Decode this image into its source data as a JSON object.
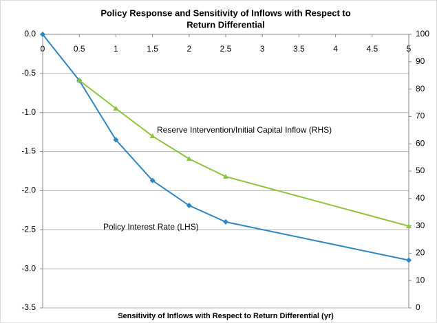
{
  "chart_data": {
    "type": "line",
    "title": [
      "Policy Response and Sensitivity of Inflows with Respect to",
      "Return Differential"
    ],
    "x_label": "Sensitivity of Inflows with Respect to Return Differential (γr)",
    "xlim": [
      0,
      5
    ],
    "xticks": [
      0,
      0.5,
      1,
      1.5,
      2,
      2.5,
      3,
      3.5,
      4,
      4.5,
      5
    ],
    "ylim": [
      -3.5,
      0
    ],
    "yticks": [
      {
        "value": -3.5,
        "label": "-3.5"
      },
      {
        "value": -3,
        "label": "-3.0"
      },
      -2.5,
      {
        "value": -2,
        "label": "-2.0"
      },
      -1.5,
      {
        "value": -1,
        "label": "-1.0"
      },
      -0.5,
      {
        "value": 0,
        "label": "0.0"
      }
    ],
    "y2lim": [
      0,
      100
    ],
    "y2ticks": [
      0,
      10,
      20,
      30,
      40,
      50,
      60,
      70,
      80,
      90,
      100
    ],
    "grid": true,
    "series": [
      {
        "name": "Policy Interest Rate (LHS)",
        "color": "#2e86c1",
        "marker": "diamond",
        "x": [
          0,
          0.5,
          1,
          1.5,
          2,
          2.5,
          5
        ],
        "values": [
          0,
          -0.59,
          -1.35,
          -1.87,
          -2.19,
          -2.4,
          -2.89
        ]
      },
      {
        "name": "Reserve Intervention/Initial Capital Inflow (RHS)",
        "color": "#8cc43c",
        "marker": "triangle",
        "axis": "y2",
        "x": [
          0.5,
          1,
          1.5,
          2,
          2.5,
          5
        ],
        "values": [
          83.2,
          72.9,
          62.8,
          54.5,
          48,
          29.9
        ]
      }
    ]
  }
}
